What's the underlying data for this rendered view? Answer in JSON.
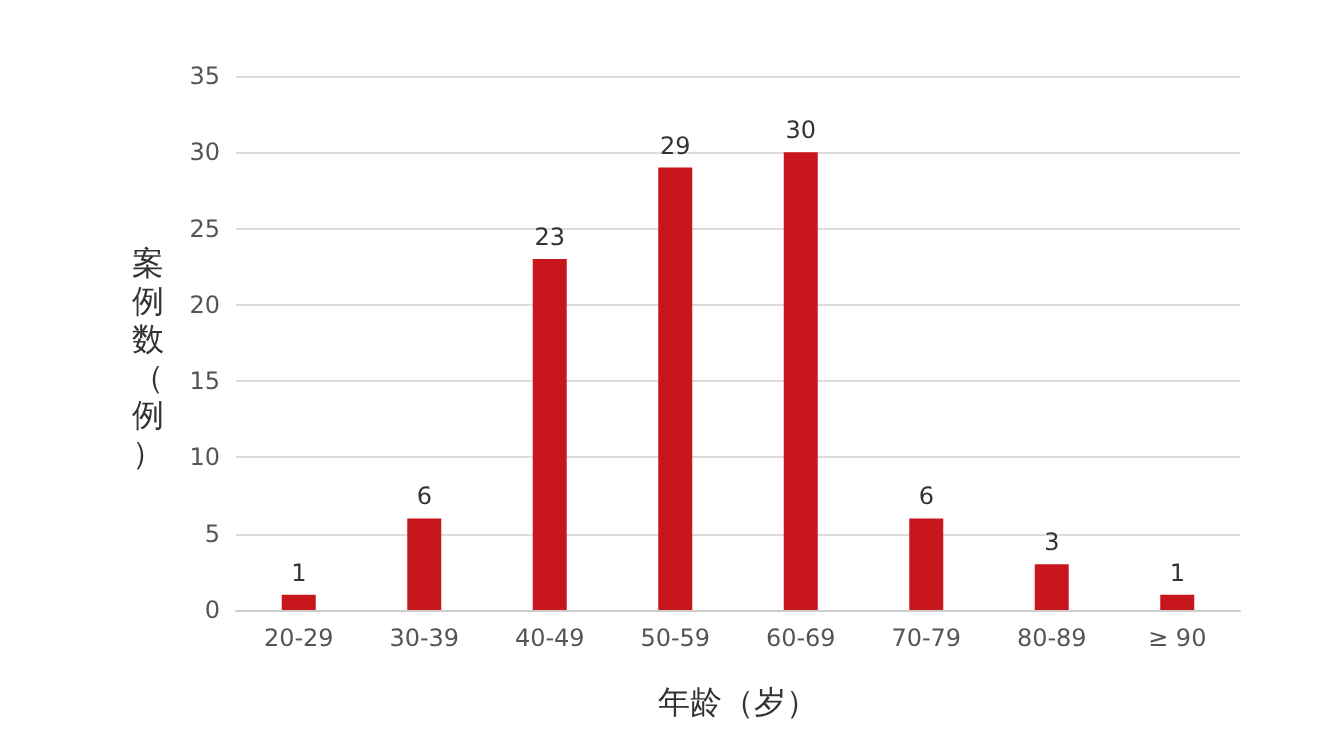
{
  "chart_data": {
    "type": "bar",
    "xlabel": "年龄（岁）",
    "ylabel": "案例数（例）",
    "categories": [
      "20-29",
      "30-39",
      "40-49",
      "50-59",
      "60-69",
      "70-79",
      "80-89",
      "≥ 90"
    ],
    "values": [
      1,
      6,
      23,
      29,
      30,
      6,
      3,
      1
    ],
    "color": "#c8161d",
    "ylim": [
      0,
      35
    ],
    "yticks": [
      0,
      5,
      10,
      15,
      20,
      25,
      30,
      35
    ],
    "grid": "y",
    "data_labels": true
  }
}
